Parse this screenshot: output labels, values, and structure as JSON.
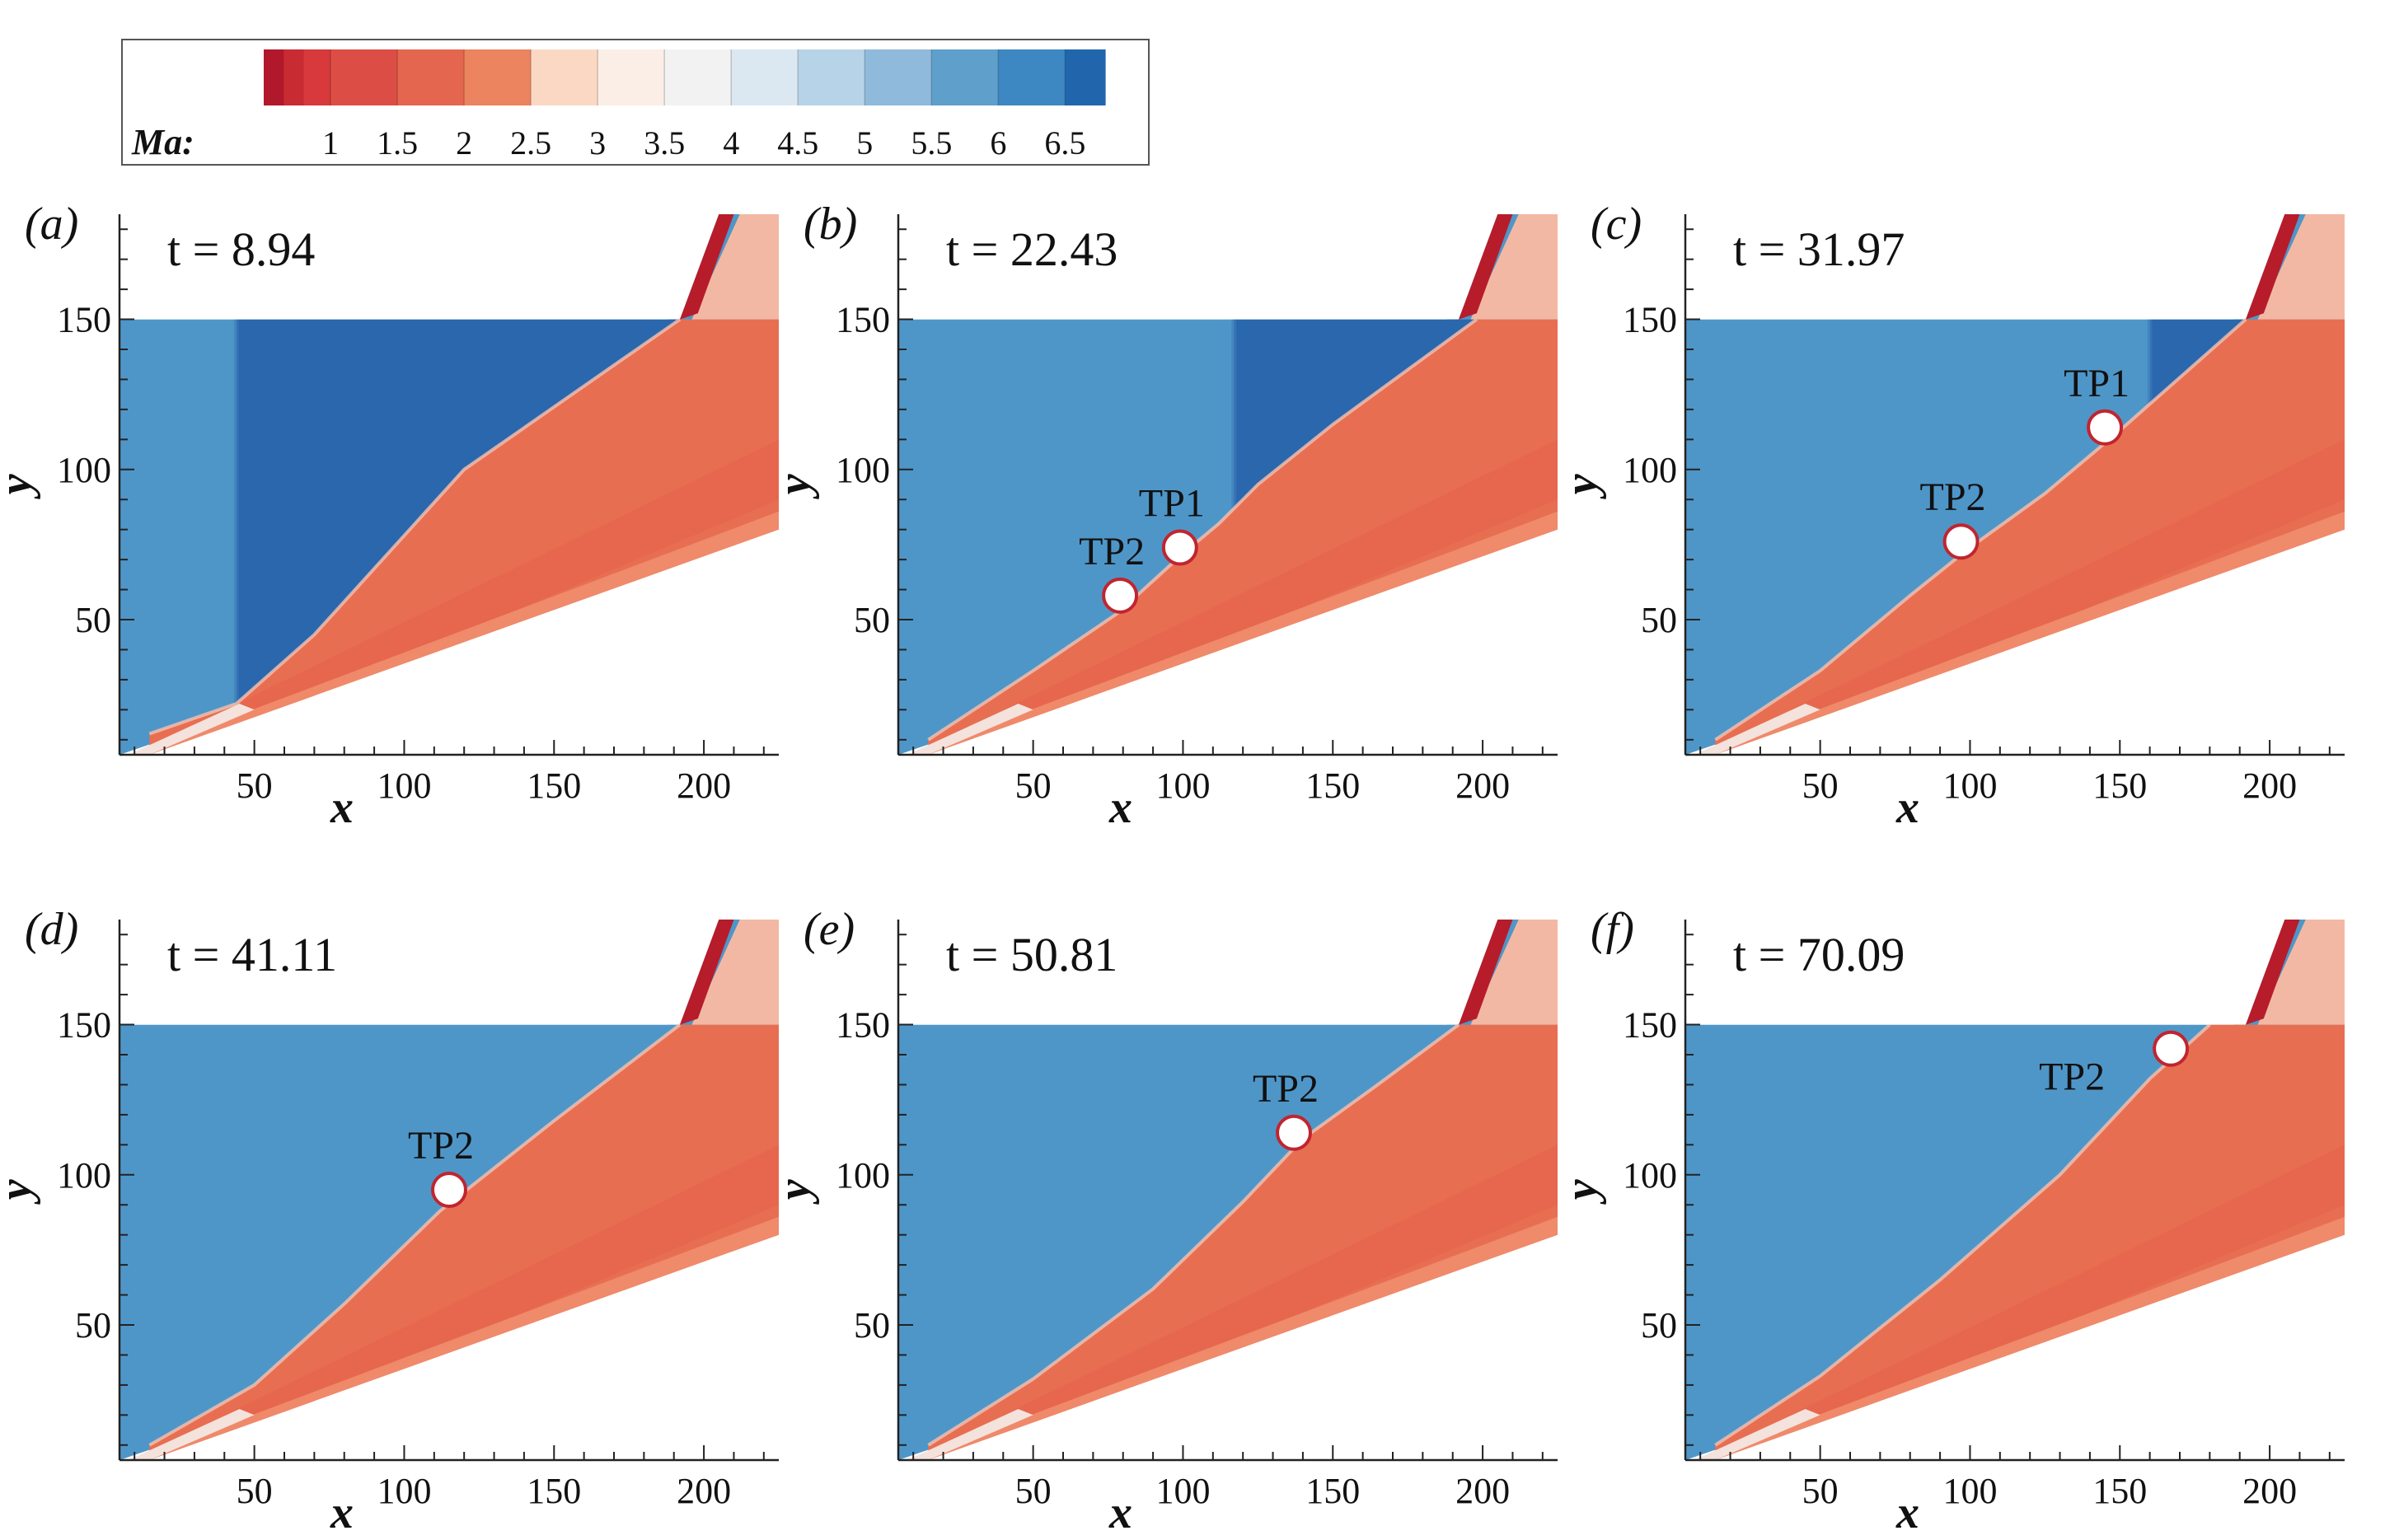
{
  "chart_data": {
    "type": "heatmap",
    "colorbar": {
      "title": "Ma:",
      "range": [
        0.5,
        6.8
      ],
      "ticks": [
        1,
        1.5,
        2,
        2.5,
        3,
        3.5,
        4,
        4.5,
        5,
        5.5,
        6,
        6.5
      ],
      "tick_labels": [
        "1",
        "1.5",
        "2",
        "2.5",
        "3",
        "3.5",
        "4",
        "4.5",
        "5",
        "5.5",
        "6",
        "6.5"
      ],
      "levels": [
        0.5,
        0.65,
        0.8,
        1,
        1.5,
        2,
        2.5,
        3,
        3.5,
        4,
        4.5,
        5,
        5.5,
        6,
        6.5,
        6.8
      ],
      "colors": [
        "#b2182b",
        "#c92b32",
        "#d7393c",
        "#dc4e45",
        "#e4664f",
        "#ec845f",
        "#fbd8c3",
        "#fbeee6",
        "#f2f2f2",
        "#dbe8f1",
        "#b7d3e7",
        "#8fbadb",
        "#5e9fcc",
        "#3d88c2",
        "#2166ac"
      ]
    },
    "common": {
      "xlabel": "x",
      "ylabel": "y",
      "xlim": [
        5,
        225
      ],
      "ylim": [
        5,
        185
      ],
      "xticks": [
        50,
        100,
        150,
        200
      ],
      "yticks": [
        50,
        100,
        150
      ],
      "xtick_labels": [
        "50",
        "100",
        "150",
        "200"
      ],
      "ytick_labels": [
        "50",
        "100",
        "150"
      ]
    },
    "region_colors": {
      "freestream_blue": "#4f96c8",
      "dark_blue": "#2a67ad",
      "shocked_orange": "#e86e52",
      "orange_dark": "#e15c44",
      "wall_layer": "#f08f70",
      "pale_near_wall": "#f4e2dc",
      "deep_red": "#b71c2b"
    },
    "panels": [
      {
        "id": "a",
        "label": "(a)",
        "time": "t = 8.94",
        "dark_region": {
          "x_start": 44,
          "x_end": 190
        },
        "shock_front": [
          [
            15,
            12
          ],
          [
            44,
            22
          ],
          [
            70,
            45
          ],
          [
            120,
            100
          ],
          [
            192,
            150
          ]
        ],
        "triple_points": []
      },
      {
        "id": "b",
        "label": "(b)",
        "time": "t = 22.43",
        "dark_region": {
          "x_start": 117,
          "x_end": 195
        },
        "shock_front": [
          [
            15,
            10
          ],
          [
            50,
            33
          ],
          [
            78,
            52
          ],
          [
            100,
            72
          ],
          [
            112,
            82
          ],
          [
            125,
            95
          ],
          [
            150,
            115
          ],
          [
            198,
            150
          ]
        ],
        "triple_points": [
          {
            "name": "TP2",
            "x": 79,
            "y": 58
          },
          {
            "name": "TP1",
            "x": 99,
            "y": 74
          }
        ]
      },
      {
        "id": "c",
        "label": "(c)",
        "time": "t = 31.97",
        "dark_region": {
          "x_start": 160,
          "x_end": 190
        },
        "shock_front": [
          [
            15,
            10
          ],
          [
            50,
            33
          ],
          [
            80,
            58
          ],
          [
            100,
            74
          ],
          [
            125,
            92
          ],
          [
            150,
            113
          ],
          [
            192,
            150
          ]
        ],
        "triple_points": [
          {
            "name": "TP2",
            "x": 97,
            "y": 76
          },
          {
            "name": "TP1",
            "x": 145,
            "y": 114
          }
        ]
      },
      {
        "id": "d",
        "label": "(d)",
        "time": "t = 41.11",
        "dark_region": null,
        "shock_front": [
          [
            15,
            10
          ],
          [
            50,
            30
          ],
          [
            80,
            57
          ],
          [
            112,
            88
          ],
          [
            150,
            118
          ],
          [
            192,
            150
          ]
        ],
        "triple_points": [
          {
            "name": "TP2",
            "x": 115,
            "y": 95
          }
        ]
      },
      {
        "id": "e",
        "label": "(e)",
        "time": "t = 50.81",
        "dark_region": null,
        "shock_front": [
          [
            15,
            10
          ],
          [
            50,
            32
          ],
          [
            90,
            62
          ],
          [
            120,
            91
          ],
          [
            140,
            112
          ],
          [
            165,
            130
          ],
          [
            192,
            150
          ]
        ],
        "triple_points": [
          {
            "name": "TP2",
            "x": 137,
            "y": 114
          }
        ]
      },
      {
        "id": "f",
        "label": "(f)",
        "time": "t = 70.09",
        "dark_region": null,
        "shock_front": [
          [
            15,
            10
          ],
          [
            50,
            33
          ],
          [
            90,
            65
          ],
          [
            130,
            100
          ],
          [
            160,
            132
          ],
          [
            180,
            150
          ]
        ],
        "triple_points": [
          {
            "name": "TP2",
            "x": 167,
            "y": 142
          }
        ]
      }
    ]
  }
}
